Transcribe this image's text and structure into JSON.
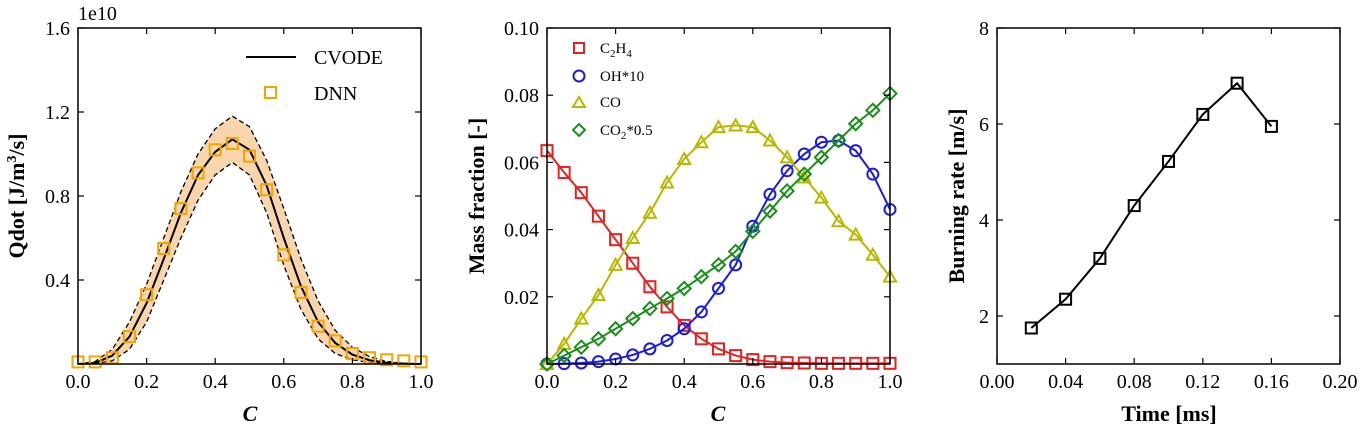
{
  "chart_data": [
    {
      "id": "qdot",
      "type": "line",
      "xlabel": "C",
      "ylabel": "Qdot [J/m³/s]",
      "ylabel_base": "Qdot [J/m",
      "ylabel_sup": "3",
      "ylabel_end": "/s]",
      "offset_text": "1e10",
      "xlim": [
        0.0,
        1.0
      ],
      "ylim": [
        0.0,
        1.6
      ],
      "xticks": [
        "0.0",
        "0.2",
        "0.4",
        "0.6",
        "0.8",
        "1.0"
      ],
      "yticks": [
        "0.4",
        "0.8",
        "1.2",
        "1.6"
      ],
      "legend": [
        {
          "label": "CVODE",
          "style": "line",
          "color": "#000000"
        },
        {
          "label": "DNN",
          "style": "square",
          "color": "#f0a500"
        }
      ],
      "band_color": "#f9d5ac",
      "cvode": {
        "x": [
          0.0,
          0.05,
          0.1,
          0.15,
          0.2,
          0.25,
          0.3,
          0.35,
          0.4,
          0.45,
          0.5,
          0.55,
          0.6,
          0.65,
          0.7,
          0.75,
          0.8,
          0.85,
          0.9,
          0.95,
          1.0
        ],
        "y": [
          0.0,
          0.005,
          0.04,
          0.13,
          0.29,
          0.5,
          0.72,
          0.9,
          1.01,
          1.07,
          1.02,
          0.85,
          0.6,
          0.37,
          0.2,
          0.1,
          0.045,
          0.018,
          0.006,
          0.002,
          0.0
        ]
      },
      "upper": {
        "x": [
          0.0,
          0.05,
          0.1,
          0.15,
          0.2,
          0.25,
          0.3,
          0.35,
          0.4,
          0.45,
          0.5,
          0.55,
          0.6,
          0.65,
          0.7,
          0.75,
          0.8,
          0.85,
          0.9,
          0.95,
          1.0
        ],
        "y": [
          0.0,
          0.012,
          0.07,
          0.2,
          0.38,
          0.6,
          0.82,
          1.0,
          1.12,
          1.18,
          1.13,
          0.97,
          0.74,
          0.5,
          0.3,
          0.16,
          0.08,
          0.035,
          0.012,
          0.004,
          0.0
        ]
      },
      "lower": {
        "x": [
          0.0,
          0.05,
          0.1,
          0.15,
          0.2,
          0.25,
          0.3,
          0.35,
          0.4,
          0.45,
          0.5,
          0.55,
          0.6,
          0.65,
          0.7,
          0.75,
          0.8,
          0.85,
          0.9,
          0.95,
          1.0
        ],
        "y": [
          0.0,
          0.002,
          0.015,
          0.07,
          0.2,
          0.4,
          0.6,
          0.78,
          0.9,
          0.96,
          0.9,
          0.72,
          0.47,
          0.26,
          0.12,
          0.05,
          0.02,
          0.007,
          0.002,
          0.0005,
          0.0
        ]
      },
      "dnn": {
        "x": [
          0.0,
          0.05,
          0.1,
          0.15,
          0.2,
          0.25,
          0.3,
          0.35,
          0.4,
          0.45,
          0.5,
          0.55,
          0.6,
          0.65,
          0.7,
          0.75,
          0.8,
          0.85,
          0.9,
          0.95,
          1.0
        ],
        "y": [
          0.01,
          0.01,
          0.03,
          0.13,
          0.33,
          0.55,
          0.74,
          0.91,
          1.02,
          1.05,
          0.99,
          0.83,
          0.52,
          0.34,
          0.18,
          0.11,
          0.05,
          0.03,
          0.02,
          0.015,
          0.01
        ]
      }
    },
    {
      "id": "mass",
      "type": "line",
      "xlabel": "C",
      "ylabel": "Mass fraction [-]",
      "xlim": [
        0.0,
        1.0
      ],
      "ylim": [
        0.0,
        0.1
      ],
      "xticks": [
        "0.0",
        "0.2",
        "0.4",
        "0.6",
        "0.8",
        "1.0"
      ],
      "yticks": [
        "0.02",
        "0.04",
        "0.06",
        "0.08",
        "0.10"
      ],
      "x": [
        0.0,
        0.05,
        0.1,
        0.15,
        0.2,
        0.25,
        0.3,
        0.35,
        0.4,
        0.45,
        0.5,
        0.55,
        0.6,
        0.65,
        0.7,
        0.75,
        0.8,
        0.85,
        0.9,
        0.95,
        1.0
      ],
      "series": [
        {
          "name": "C2H4",
          "legend_base": "C",
          "legend_sub1": "2",
          "legend_mid": "H",
          "legend_sub2": "4",
          "legend_end": "",
          "marker": "square",
          "color": "#e52222",
          "values": [
            0.0635,
            0.057,
            0.051,
            0.044,
            0.037,
            0.03,
            0.023,
            0.017,
            0.0115,
            0.0075,
            0.0045,
            0.0025,
            0.0013,
            0.0007,
            0.0004,
            0.0003,
            0.0002,
            0.0002,
            0.0002,
            0.0002,
            0.0002
          ]
        },
        {
          "name": "OH*10",
          "legend_base": "OH*10",
          "legend_sub1": "",
          "legend_mid": "",
          "legend_sub2": "",
          "legend_end": "",
          "marker": "circle",
          "color": "#1c1ce0",
          "values": [
            0.0,
            0.0001,
            0.0003,
            0.0007,
            0.0015,
            0.0027,
            0.0045,
            0.007,
            0.0105,
            0.0155,
            0.0225,
            0.0295,
            0.041,
            0.0505,
            0.0575,
            0.0625,
            0.066,
            0.0665,
            0.0635,
            0.0565,
            0.046
          ]
        },
        {
          "name": "CO",
          "legend_base": "CO",
          "legend_sub1": "",
          "legend_mid": "",
          "legend_sub2": "",
          "legend_end": "",
          "marker": "triangle",
          "color": "#b8b800",
          "values": [
            0.0,
            0.006,
            0.0135,
            0.0205,
            0.0295,
            0.0375,
            0.045,
            0.054,
            0.061,
            0.066,
            0.0705,
            0.071,
            0.0705,
            0.0665,
            0.0615,
            0.0555,
            0.0495,
            0.0425,
            0.0385,
            0.0325,
            0.026
          ]
        },
        {
          "name": "CO2*0.5",
          "legend_base": "CO",
          "legend_sub1": "2",
          "legend_mid": "*0.5",
          "legend_sub2": "",
          "legend_end": "",
          "marker": "diamond",
          "color": "#1a8f1a",
          "values": [
            0.0,
            0.0025,
            0.005,
            0.0075,
            0.0105,
            0.0135,
            0.0165,
            0.0195,
            0.0225,
            0.026,
            0.0295,
            0.0335,
            0.0395,
            0.0455,
            0.0515,
            0.0565,
            0.0615,
            0.0665,
            0.0715,
            0.0755,
            0.0805
          ]
        }
      ]
    },
    {
      "id": "burn",
      "type": "line",
      "xlabel": "Time [ms]",
      "ylabel": "Burning rate [m/s]",
      "xlim": [
        0.0,
        0.2
      ],
      "ylim": [
        1.0,
        8.0
      ],
      "xticks": [
        "0.00",
        "0.04",
        "0.08",
        "0.12",
        "0.16",
        "0.20"
      ],
      "yticks": [
        "2",
        "4",
        "6",
        "8"
      ],
      "x": [
        0.02,
        0.04,
        0.06,
        0.08,
        0.1,
        0.12,
        0.14,
        0.16
      ],
      "values": [
        1.75,
        2.35,
        3.2,
        4.3,
        5.22,
        6.2,
        6.85,
        5.95
      ],
      "marker": "square",
      "color": "#000000"
    }
  ]
}
